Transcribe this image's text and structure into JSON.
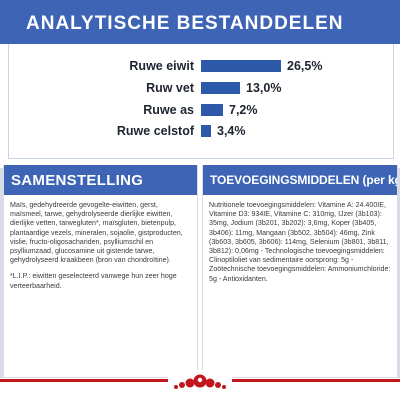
{
  "title": "ANALYTISCHE BESTANDDELEN",
  "analysis": [
    {
      "label": "Ruwe eiwit",
      "value": "26,5%",
      "percent": 26.5
    },
    {
      "label": "Ruw vet",
      "value": "13,0%",
      "percent": 13.0
    },
    {
      "label": "Ruwe as",
      "value": "7,2%",
      "percent": 7.2
    },
    {
      "label": "Ruwe celstof",
      "value": "3,4%",
      "percent": 3.4
    }
  ],
  "composition": {
    "heading": "SAMENSTELLING",
    "body": "Maïs, gedehydreerde gevogelte-eiwitten, gerst, maïsmeel, tarwe, gehydrolyseerde dierlijke eiwitten, dierlijke vetten, tarwegluten*, maïsgluten, bietenpulp, plantaardige vezels, mineralen, sojaolie, gistproducten, vislie, fructo-oligosachariden, psylliumschil en psylliumzaad, glucosamine uit gistende tarwe, gehydrolyseerd kraakbeen (bron van chondroïtine).",
    "note": "*L.I.P.: eiwitten geselecteerd vanwege hun zeer hoge verteerbaarheid."
  },
  "additives": {
    "heading": "TOEVOEGINGSMIDDELEN (per kg)",
    "body": "Nutritionele toevoegingsmiddelen: Vitamine A: 24.400IE, Vitamine D3: 934IE, Vitamine C: 310mg, IJzer (3b103): 35mg, Jodium (3b201, 3b202): 3,6mg, Koper (3b405, 3b406): 11mg, Mangaan (3b502, 3b504): 46mg, Zink (3b603, 3b605, 3b606): 114mg, Selenium (3b801, 3b811, 3b812): 0,06mg - Technologische toevoegingsmiddelen: Clinoptiloliet van sedimentaire oorsprong: 5g - Zoötechnische toevoegingsmiddelen: Ammoniumchloride: 5g - Antioxidanten."
  },
  "colors": {
    "accent_blue": "#3e64b5",
    "bar_blue": "#2c5aa8",
    "brand_red": "#c3151c"
  },
  "logo": {
    "icon": "royal-canin-crown-logo"
  }
}
